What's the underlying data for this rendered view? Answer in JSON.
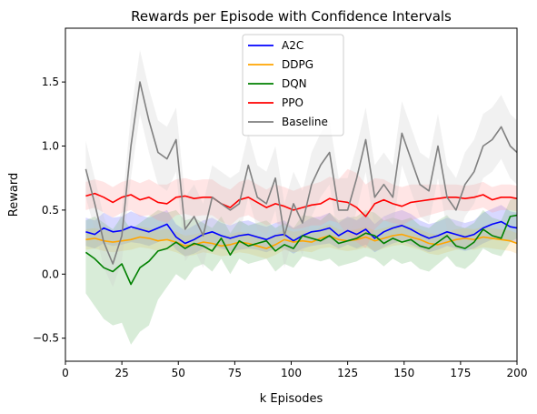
{
  "chart_data": {
    "type": "line",
    "title": "Rewards per Episode with Confidence Intervals",
    "xlabel": "k Episodes",
    "ylabel": "Reward",
    "xlim": [
      0,
      200
    ],
    "ylim": [
      -0.68,
      1.92
    ],
    "x_ticks": [
      0,
      25,
      50,
      75,
      100,
      125,
      150,
      175,
      200
    ],
    "x_tick_labels": [
      "0",
      "25",
      "50",
      "75",
      "100",
      "125",
      "150",
      "175",
      "200"
    ],
    "y_ticks": [
      -0.5,
      0.0,
      0.5,
      1.0,
      1.5
    ],
    "y_tick_labels": [
      "−0.5",
      "0.0",
      "0.5",
      "1.0",
      "1.5"
    ],
    "grid": false,
    "legend_position": "top-center",
    "x": [
      9,
      13,
      17,
      21,
      25,
      29,
      33,
      37,
      41,
      45,
      49,
      53,
      57,
      61,
      65,
      69,
      73,
      77,
      81,
      85,
      89,
      93,
      97,
      101,
      105,
      109,
      113,
      117,
      121,
      125,
      129,
      133,
      137,
      141,
      145,
      149,
      153,
      157,
      161,
      165,
      169,
      173,
      177,
      181,
      185,
      189,
      193,
      197,
      200
    ],
    "series": [
      {
        "name": "A2C",
        "color": "#0000ff",
        "band_color": "#6464ff",
        "values": [
          0.33,
          0.31,
          0.36,
          0.33,
          0.34,
          0.37,
          0.35,
          0.33,
          0.36,
          0.39,
          0.29,
          0.24,
          0.27,
          0.31,
          0.33,
          0.3,
          0.28,
          0.3,
          0.31,
          0.29,
          0.27,
          0.3,
          0.31,
          0.26,
          0.3,
          0.33,
          0.34,
          0.36,
          0.3,
          0.34,
          0.31,
          0.35,
          0.28,
          0.33,
          0.36,
          0.38,
          0.35,
          0.31,
          0.28,
          0.3,
          0.33,
          0.31,
          0.29,
          0.31,
          0.36,
          0.39,
          0.41,
          0.37,
          0.36
        ],
        "lower": [
          0.22,
          0.2,
          0.24,
          0.22,
          0.23,
          0.25,
          0.24,
          0.22,
          0.25,
          0.28,
          0.19,
          0.14,
          0.16,
          0.2,
          0.22,
          0.2,
          0.18,
          0.19,
          0.2,
          0.19,
          0.17,
          0.2,
          0.2,
          0.16,
          0.2,
          0.22,
          0.23,
          0.24,
          0.2,
          0.23,
          0.2,
          0.23,
          0.17,
          0.21,
          0.24,
          0.26,
          0.23,
          0.2,
          0.17,
          0.19,
          0.22,
          0.2,
          0.18,
          0.2,
          0.24,
          0.27,
          0.28,
          0.25,
          0.24
        ],
        "upper": [
          0.44,
          0.42,
          0.48,
          0.44,
          0.45,
          0.49,
          0.46,
          0.44,
          0.47,
          0.5,
          0.39,
          0.34,
          0.38,
          0.42,
          0.44,
          0.4,
          0.38,
          0.41,
          0.42,
          0.39,
          0.37,
          0.4,
          0.42,
          0.36,
          0.4,
          0.44,
          0.45,
          0.48,
          0.4,
          0.45,
          0.42,
          0.47,
          0.39,
          0.45,
          0.48,
          0.5,
          0.47,
          0.42,
          0.39,
          0.41,
          0.44,
          0.42,
          0.4,
          0.42,
          0.48,
          0.51,
          0.54,
          0.49,
          0.48
        ]
      },
      {
        "name": "DDPG",
        "color": "#ffa500",
        "band_color": "#ffc864",
        "values": [
          0.27,
          0.28,
          0.26,
          0.25,
          0.26,
          0.27,
          0.29,
          0.28,
          0.26,
          0.27,
          0.25,
          0.22,
          0.23,
          0.25,
          0.24,
          0.22,
          0.23,
          0.25,
          0.24,
          0.22,
          0.2,
          0.23,
          0.27,
          0.25,
          0.26,
          0.25,
          0.28,
          0.3,
          0.27,
          0.26,
          0.27,
          0.29,
          0.26,
          0.28,
          0.3,
          0.31,
          0.29,
          0.27,
          0.24,
          0.23,
          0.25,
          0.27,
          0.28,
          0.27,
          0.29,
          0.28,
          0.27,
          0.26,
          0.24
        ],
        "lower": [
          0.19,
          0.2,
          0.18,
          0.17,
          0.18,
          0.19,
          0.21,
          0.2,
          0.18,
          0.19,
          0.17,
          0.14,
          0.15,
          0.17,
          0.16,
          0.14,
          0.15,
          0.17,
          0.16,
          0.14,
          0.12,
          0.15,
          0.19,
          0.17,
          0.18,
          0.17,
          0.2,
          0.21,
          0.19,
          0.18,
          0.19,
          0.21,
          0.18,
          0.2,
          0.22,
          0.23,
          0.21,
          0.19,
          0.16,
          0.15,
          0.17,
          0.19,
          0.2,
          0.19,
          0.21,
          0.2,
          0.19,
          0.18,
          0.16
        ],
        "upper": [
          0.35,
          0.36,
          0.34,
          0.33,
          0.34,
          0.35,
          0.37,
          0.36,
          0.34,
          0.35,
          0.33,
          0.3,
          0.31,
          0.33,
          0.32,
          0.3,
          0.31,
          0.33,
          0.32,
          0.3,
          0.28,
          0.31,
          0.35,
          0.33,
          0.34,
          0.33,
          0.36,
          0.39,
          0.35,
          0.34,
          0.35,
          0.37,
          0.34,
          0.36,
          0.38,
          0.39,
          0.37,
          0.35,
          0.32,
          0.31,
          0.33,
          0.35,
          0.36,
          0.35,
          0.37,
          0.36,
          0.35,
          0.34,
          0.32
        ]
      },
      {
        "name": "DQN",
        "color": "#008000",
        "band_color": "#64b464",
        "values": [
          0.17,
          0.12,
          0.05,
          0.02,
          0.08,
          -0.08,
          0.05,
          0.1,
          0.18,
          0.2,
          0.25,
          0.2,
          0.24,
          0.22,
          0.18,
          0.28,
          0.15,
          0.26,
          0.22,
          0.24,
          0.26,
          0.18,
          0.23,
          0.2,
          0.3,
          0.28,
          0.26,
          0.3,
          0.24,
          0.26,
          0.28,
          0.32,
          0.3,
          0.24,
          0.28,
          0.25,
          0.27,
          0.22,
          0.2,
          0.25,
          0.3,
          0.22,
          0.2,
          0.25,
          0.35,
          0.3,
          0.28,
          0.45,
          0.46
        ],
        "lower": [
          -0.15,
          -0.25,
          -0.35,
          -0.4,
          -0.38,
          -0.55,
          -0.45,
          -0.4,
          -0.2,
          -0.1,
          0.0,
          -0.05,
          0.05,
          0.08,
          0.02,
          0.12,
          0.0,
          0.12,
          0.08,
          0.1,
          0.12,
          0.02,
          0.08,
          0.05,
          0.14,
          0.12,
          0.1,
          0.12,
          0.06,
          0.08,
          0.1,
          0.14,
          0.12,
          0.06,
          0.12,
          0.08,
          0.1,
          0.04,
          0.02,
          0.08,
          0.14,
          0.06,
          0.04,
          0.1,
          0.2,
          0.16,
          0.14,
          0.25,
          0.28
        ],
        "upper": [
          0.42,
          0.45,
          0.4,
          0.35,
          0.45,
          0.35,
          0.4,
          0.45,
          0.5,
          0.48,
          0.5,
          0.42,
          0.44,
          0.4,
          0.36,
          0.45,
          0.32,
          0.42,
          0.38,
          0.4,
          0.42,
          0.36,
          0.4,
          0.36,
          0.46,
          0.45,
          0.42,
          0.48,
          0.42,
          0.44,
          0.45,
          0.5,
          0.48,
          0.42,
          0.44,
          0.42,
          0.44,
          0.38,
          0.36,
          0.42,
          0.46,
          0.38,
          0.36,
          0.4,
          0.5,
          0.44,
          0.42,
          0.58,
          0.6
        ]
      },
      {
        "name": "PPO",
        "color": "#ff0000",
        "band_color": "#ff9696",
        "values": [
          0.61,
          0.63,
          0.6,
          0.56,
          0.6,
          0.62,
          0.58,
          0.6,
          0.56,
          0.55,
          0.6,
          0.61,
          0.59,
          0.6,
          0.6,
          0.55,
          0.52,
          0.58,
          0.6,
          0.56,
          0.52,
          0.55,
          0.53,
          0.5,
          0.52,
          0.54,
          0.55,
          0.59,
          0.57,
          0.56,
          0.52,
          0.45,
          0.55,
          0.58,
          0.55,
          0.53,
          0.56,
          0.57,
          0.58,
          0.59,
          0.6,
          0.6,
          0.59,
          0.6,
          0.62,
          0.58,
          0.6,
          0.6,
          0.59
        ],
        "lower": [
          0.5,
          0.52,
          0.48,
          0.44,
          0.48,
          0.5,
          0.45,
          0.46,
          0.42,
          0.4,
          0.46,
          0.47,
          0.45,
          0.46,
          0.46,
          0.41,
          0.38,
          0.44,
          0.46,
          0.42,
          0.38,
          0.4,
          0.38,
          0.35,
          0.36,
          0.38,
          0.38,
          0.42,
          0.4,
          0.3,
          0.25,
          0.2,
          0.35,
          0.42,
          0.4,
          0.38,
          0.42,
          0.44,
          0.46,
          0.48,
          0.5,
          0.5,
          0.49,
          0.5,
          0.52,
          0.48,
          0.5,
          0.5,
          0.49
        ],
        "upper": [
          0.72,
          0.74,
          0.72,
          0.68,
          0.72,
          0.74,
          0.71,
          0.74,
          0.7,
          0.7,
          0.74,
          0.75,
          0.73,
          0.74,
          0.74,
          0.69,
          0.66,
          0.72,
          0.74,
          0.7,
          0.66,
          0.7,
          0.68,
          0.65,
          0.68,
          0.7,
          0.72,
          0.76,
          0.74,
          0.82,
          0.79,
          0.7,
          0.75,
          0.74,
          0.7,
          0.68,
          0.7,
          0.7,
          0.7,
          0.7,
          0.7,
          0.7,
          0.69,
          0.7,
          0.72,
          0.68,
          0.7,
          0.7,
          0.69
        ]
      },
      {
        "name": "Baseline",
        "color": "#808080",
        "band_color": "#c8c8c8",
        "values": [
          0.82,
          0.55,
          0.25,
          0.08,
          0.3,
          1.0,
          1.5,
          1.2,
          0.95,
          0.9,
          1.05,
          0.35,
          0.45,
          0.3,
          0.6,
          0.55,
          0.5,
          0.55,
          0.85,
          0.6,
          0.55,
          0.75,
          0.3,
          0.55,
          0.4,
          0.7,
          0.85,
          0.95,
          0.5,
          0.5,
          0.75,
          1.05,
          0.6,
          0.7,
          0.6,
          1.1,
          0.9,
          0.7,
          0.65,
          1.0,
          0.6,
          0.5,
          0.7,
          0.8,
          1.0,
          1.05,
          1.15,
          1.0,
          0.95
        ],
        "lower": [
          0.6,
          0.35,
          0.05,
          -0.1,
          0.1,
          0.75,
          1.25,
          0.95,
          0.7,
          0.65,
          0.8,
          0.1,
          0.2,
          0.05,
          0.35,
          0.3,
          0.25,
          0.3,
          0.6,
          0.35,
          0.3,
          0.5,
          0.05,
          0.3,
          0.15,
          0.45,
          0.6,
          0.7,
          0.25,
          0.25,
          0.5,
          0.8,
          0.35,
          0.45,
          0.35,
          0.85,
          0.65,
          0.45,
          0.4,
          0.75,
          0.35,
          0.25,
          0.45,
          0.55,
          0.75,
          0.8,
          0.9,
          0.75,
          0.7
        ],
        "upper": [
          1.04,
          0.75,
          0.45,
          0.26,
          0.5,
          1.25,
          1.75,
          1.45,
          1.2,
          1.15,
          1.3,
          0.6,
          0.7,
          0.55,
          0.85,
          0.8,
          0.75,
          0.8,
          1.1,
          0.85,
          0.8,
          1.0,
          0.55,
          0.8,
          0.65,
          0.95,
          1.1,
          1.2,
          0.75,
          0.75,
          1.0,
          1.3,
          0.85,
          0.95,
          0.85,
          1.35,
          1.15,
          0.95,
          0.9,
          1.25,
          0.85,
          0.75,
          0.95,
          1.05,
          1.25,
          1.3,
          1.4,
          1.25,
          1.2
        ]
      }
    ]
  }
}
